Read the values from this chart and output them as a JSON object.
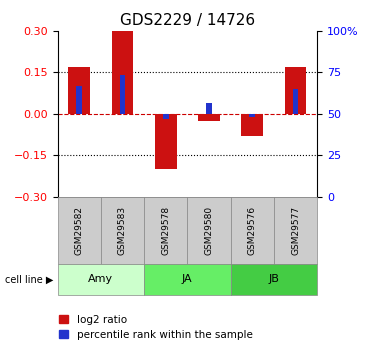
{
  "title": "GDS2229 / 14726",
  "samples": [
    "GSM29582",
    "GSM29583",
    "GSM29578",
    "GSM29580",
    "GSM29576",
    "GSM29577"
  ],
  "log2_ratio": [
    0.17,
    0.3,
    -0.2,
    -0.025,
    -0.08,
    0.17
  ],
  "percentile_rank_scaled": [
    0.1,
    0.14,
    -0.02,
    0.04,
    -0.01,
    0.09
  ],
  "groups": [
    {
      "label": "Amy",
      "start": 0,
      "end": 2,
      "color": "#ccffcc"
    },
    {
      "label": "JA",
      "start": 2,
      "end": 4,
      "color": "#66ee66"
    },
    {
      "label": "JB",
      "start": 4,
      "end": 6,
      "color": "#44cc44"
    }
  ],
  "ylim_left": [
    -0.3,
    0.3
  ],
  "ylim_right": [
    0,
    100
  ],
  "bar_color_red": "#cc1111",
  "bar_color_blue": "#2233cc",
  "yticks_left": [
    -0.3,
    -0.15,
    0.0,
    0.15,
    0.3
  ],
  "yticks_right": [
    0,
    25,
    50,
    75,
    100
  ],
  "background_color": "#ffffff",
  "zero_line_color": "#cc0000",
  "title_fontsize": 11,
  "tick_fontsize": 8,
  "legend_fontsize": 7.5,
  "sample_box_color": "#cccccc",
  "red_bar_width": 0.5,
  "blue_bar_width": 0.13
}
